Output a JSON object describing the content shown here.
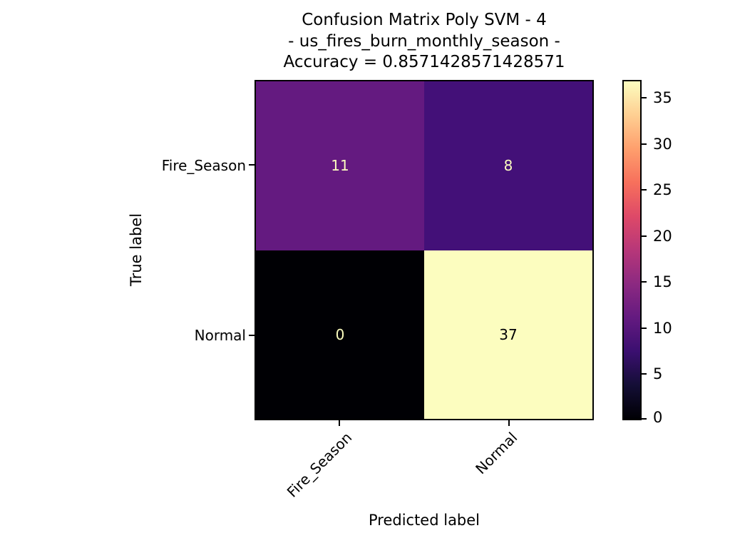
{
  "title": {
    "line1": "Confusion Matrix Poly SVM - 4",
    "line2": "- us_fires_burn_monthly_season -",
    "line3": "Accuracy = 0.8571428571428571"
  },
  "axes": {
    "xlabel": "Predicted label",
    "ylabel": "True label",
    "x_tick_labels": [
      "Fire_Season",
      "Normal"
    ],
    "y_tick_labels": [
      "Fire_Season",
      "Normal"
    ]
  },
  "cells": [
    {
      "true_label": "Fire_Season",
      "pred_label": "Fire_Season",
      "value": "11",
      "bg": "#641a80",
      "fg": "#fcfdbf"
    },
    {
      "true_label": "Fire_Season",
      "pred_label": "Normal",
      "value": "8",
      "bg": "#431078",
      "fg": "#fcfdbf"
    },
    {
      "true_label": "Normal",
      "pred_label": "Fire_Season",
      "value": "0",
      "bg": "#000004",
      "fg": "#fcfdbf"
    },
    {
      "true_label": "Normal",
      "pred_label": "Normal",
      "value": "37",
      "bg": "#fcfdbf",
      "fg": "#000004"
    }
  ],
  "colorbar": {
    "tick_labels_top_to_bottom": [
      "35",
      "30",
      "25",
      "20",
      "15",
      "10",
      "5",
      "0"
    ],
    "gradient_stops_bottom_to_top": [
      "#000004",
      "#140e36",
      "#3b0f70",
      "#641a80",
      "#8c2981",
      "#b73779",
      "#de4968",
      "#f7705c",
      "#fe9f6d",
      "#fecf92",
      "#fcfdbf"
    ],
    "outline_color": "#000000"
  },
  "colors": {
    "text": "#000000",
    "axes_edge": "#000000",
    "background": "#ffffff"
  },
  "chart_data": {
    "type": "heatmap",
    "title": "Confusion Matrix Poly SVM - 4\n- us_fires_burn_monthly_season -\nAccuracy = 0.8571428571428571",
    "xlabel": "Predicted label",
    "ylabel": "True label",
    "categories": [
      "Fire_Season",
      "Normal"
    ],
    "matrix_rows_true_by_pred": [
      [
        11,
        8
      ],
      [
        0,
        37
      ]
    ],
    "vmin": 0,
    "vmax": 37,
    "colormap": "magma",
    "colorbar_ticks": [
      0,
      5,
      10,
      15,
      20,
      25,
      30,
      35
    ],
    "accuracy": 0.8571428571428571,
    "grid": false,
    "legend": "colorbar-right"
  }
}
